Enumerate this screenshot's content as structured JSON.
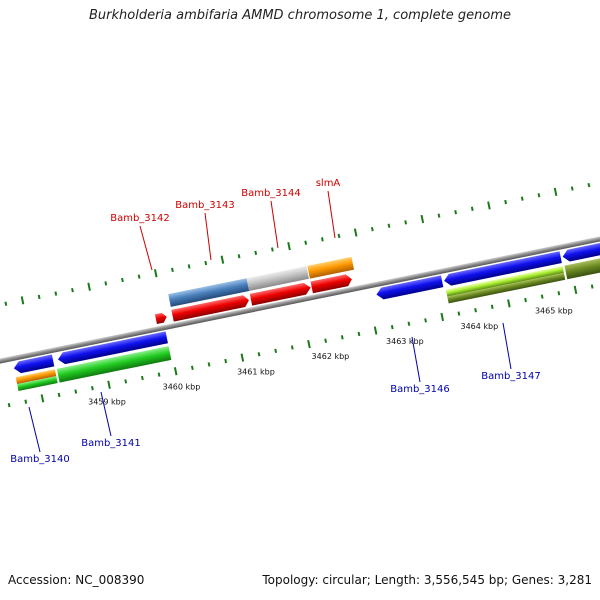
{
  "title": "Burkholderia ambifaria AMMD chromosome 1, complete genome",
  "footer": {
    "accession": "Accession: NC_008390",
    "summary": "Topology: circular; Length: 3,556,545 bp; Genes: 3,281"
  },
  "colors": {
    "backbone": "#8a8a8a",
    "tick": "#1a7a1a",
    "label_forward": "#cc0000",
    "label_reverse": "#0000aa"
  },
  "scale": {
    "unit": "kbp",
    "ticks": [
      {
        "label": "3459 kbp"
      },
      {
        "label": "3460 kbp"
      },
      {
        "label": "3461 kbp"
      },
      {
        "label": "3462 kbp"
      },
      {
        "label": "3463 kbp"
      },
      {
        "label": "3464 kbp"
      },
      {
        "label": "3465 kbp"
      }
    ]
  },
  "genes_forward": [
    {
      "name": "Bamb_3142"
    },
    {
      "name": "Bamb_3143"
    },
    {
      "name": "Bamb_3144"
    },
    {
      "name": "slmA"
    }
  ],
  "genes_reverse": [
    {
      "name": "Bamb_3140"
    },
    {
      "name": "Bamb_3141"
    },
    {
      "name": "Bamb_3146"
    },
    {
      "name": "Bamb_3147"
    }
  ]
}
